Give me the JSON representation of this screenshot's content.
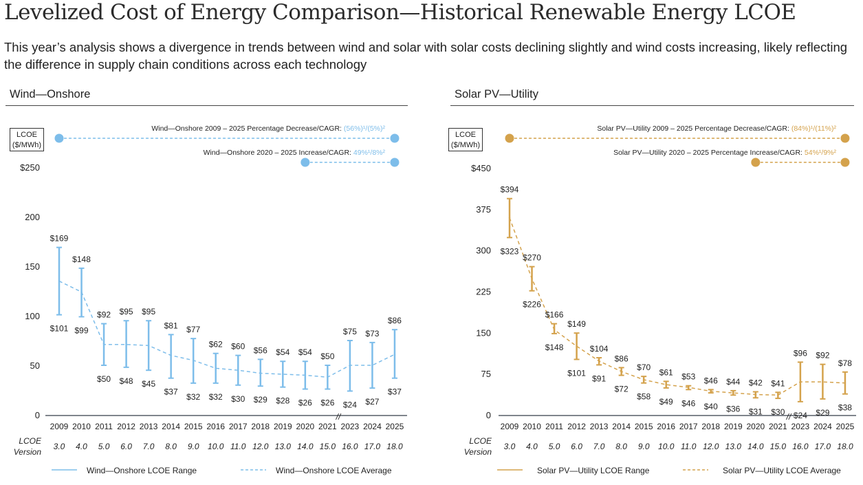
{
  "header": {
    "title": "Levelized Cost of Energy Comparison—Historical Renewable Energy LCOE",
    "subtitle": "This year’s analysis shows a divergence in trends between wind and solar with solar costs declining slightly and wind costs increasing, likely reflecting the difference in supply chain conditions across each technology"
  },
  "colors": {
    "wind": "#7dbdea",
    "solar": "#d4a24c",
    "axis": "#555b66"
  },
  "chart_data": [
    {
      "type": "range-bar-with-line",
      "title": "Wind—Onshore",
      "ylabel_line1": "LCOE",
      "ylabel_line2": "($/MWh)",
      "ylim": [
        0,
        250
      ],
      "yticks": [
        "0",
        "50",
        "100",
        "150",
        "200",
        "$250"
      ],
      "ytick_values": [
        0,
        50,
        100,
        150,
        200,
        250
      ],
      "categories": [
        "2009",
        "2010",
        "2011",
        "2012",
        "2013",
        "2014",
        "2015",
        "2016",
        "2017",
        "2018",
        "2019",
        "2020",
        "2021",
        "2023",
        "2024",
        "2025"
      ],
      "axis_break_between": [
        "2021",
        "2023"
      ],
      "axis_break_mark": "//",
      "version_label_line1": "LCOE",
      "version_label_line2": "Version",
      "versions": [
        "3.0",
        "4.0",
        "5.0",
        "6.0",
        "7.0",
        "8.0",
        "9.0",
        "10.0",
        "11.0",
        "12.0",
        "13.0",
        "14.0",
        "15.0",
        "16.0",
        "17.0",
        "18.0"
      ],
      "high": [
        169,
        148,
        92,
        95,
        95,
        81,
        77,
        62,
        60,
        56,
        54,
        54,
        50,
        75,
        73,
        86
      ],
      "low": [
        101,
        99,
        50,
        48,
        45,
        37,
        32,
        32,
        30,
        29,
        28,
        26,
        26,
        24,
        27,
        37
      ],
      "high_labels": [
        "$169",
        "$148",
        "$92",
        "$95",
        "$95",
        "$81",
        "$77",
        "$62",
        "$60",
        "$56",
        "$54",
        "$54",
        "$50",
        "$75",
        "$73",
        "$86"
      ],
      "low_labels": [
        "$101",
        "$99",
        "$50",
        "$48",
        "$45",
        "$37",
        "$32",
        "$32",
        "$30",
        "$29",
        "$28",
        "$26",
        "$26",
        "$24",
        "$27",
        "$37"
      ],
      "average": [
        135,
        124,
        71,
        71,
        70,
        60,
        55,
        47,
        45,
        42,
        41,
        40,
        38,
        50,
        50,
        61
      ],
      "annotations": [
        {
          "text": "Wind—Onshore 2009 – 2025 Percentage Decrease/CAGR: ",
          "value": "(56%)¹/(5%)²",
          "from": "2009",
          "to": "2025"
        },
        {
          "text": "Wind—Onshore 2020 – 2025 Increase/CAGR: ",
          "value": "49%¹/8%²",
          "from": "2020",
          "to": "2025"
        }
      ],
      "legend": {
        "range": "Wind—Onshore LCOE Range",
        "average": "Wind—Onshore LCOE Average"
      }
    },
    {
      "type": "range-bar-with-line",
      "title": "Solar PV—Utility",
      "ylabel_line1": "LCOE",
      "ylabel_line2": "($/MWh)",
      "ylim": [
        0,
        450
      ],
      "yticks": [
        "0",
        "75",
        "150",
        "225",
        "300",
        "375",
        "$450"
      ],
      "ytick_values": [
        0,
        75,
        150,
        225,
        300,
        375,
        450
      ],
      "categories": [
        "2009",
        "2010",
        "2011",
        "2012",
        "2013",
        "2014",
        "2015",
        "2016",
        "2017",
        "2018",
        "2019",
        "2020",
        "2021",
        "2023",
        "2024",
        "2025"
      ],
      "axis_break_between": [
        "2021",
        "2023"
      ],
      "axis_break_mark": "//",
      "version_label_line1": "LCOE",
      "version_label_line2": "Version",
      "versions": [
        "3.0",
        "4.0",
        "5.0",
        "6.0",
        "7.0",
        "8.0",
        "9.0",
        "10.0",
        "11.0",
        "12.0",
        "13.0",
        "14.0",
        "15.0",
        "16.0",
        "17.0",
        "18.0"
      ],
      "high": [
        394,
        270,
        166,
        149,
        104,
        86,
        70,
        61,
        53,
        46,
        44,
        42,
        41,
        96,
        92,
        78
      ],
      "low": [
        323,
        226,
        148,
        101,
        91,
        72,
        58,
        49,
        46,
        40,
        36,
        31,
        30,
        24,
        29,
        38
      ],
      "high_labels": [
        "$394",
        "$270",
        "$166",
        "$149",
        "$104",
        "$86",
        "$70",
        "$61",
        "$53",
        "$46",
        "$44",
        "$42",
        "$41",
        "$96",
        "$92",
        "$78"
      ],
      "low_labels": [
        "$323",
        "$226",
        "$148",
        "$101",
        "$91",
        "$72",
        "$58",
        "$49",
        "$46",
        "$40",
        "$36",
        "$31",
        "$30",
        "$24",
        "$29",
        "$38"
      ],
      "average": [
        359,
        248,
        155,
        125,
        98,
        79,
        64,
        55,
        50,
        43,
        40,
        37,
        36,
        60,
        60,
        58
      ],
      "annotations": [
        {
          "text": "Solar PV—Utility 2009 – 2025 Percentage Decrease/CAGR: ",
          "value": "(84%)¹/(11%)²",
          "from": "2009",
          "to": "2025"
        },
        {
          "text": "Solar PV—Utility 2020 – 2025 Percentage Increase/CAGR: ",
          "value": "54%¹/9%²",
          "from": "2020",
          "to": "2025"
        }
      ],
      "legend": {
        "range": "Solar PV—Utility LCOE Range",
        "average": "Solar PV—Utility LCOE Average"
      }
    }
  ]
}
